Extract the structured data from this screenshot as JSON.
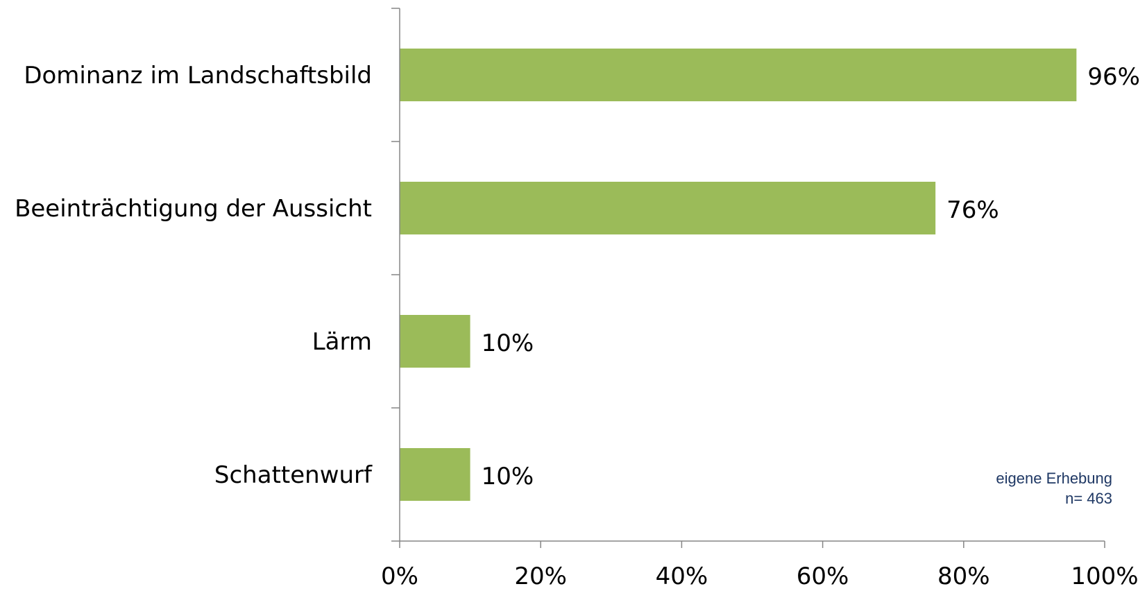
{
  "chart_data": {
    "type": "bar",
    "orientation": "horizontal",
    "categories": [
      "Dominanz im Landschaftsbild",
      "Beeinträchtigung der Aussicht",
      "Lärm",
      "Schattenwurf"
    ],
    "values": [
      96,
      76,
      10,
      10
    ],
    "value_labels": [
      "96%",
      "76%",
      "10%",
      "10%"
    ],
    "unit": "%",
    "xlim": [
      0,
      100
    ],
    "xticks": [
      0,
      20,
      40,
      60,
      80,
      100
    ],
    "xtick_labels": [
      "0%",
      "20%",
      "40%",
      "60%",
      "80%",
      "100%"
    ],
    "grid": false,
    "legend": "none",
    "bar_color": "#9bbb59",
    "title": "",
    "xlabel": "",
    "ylabel": ""
  },
  "note": {
    "line1": "eigene Erhebung",
    "line2": "n= 463"
  }
}
